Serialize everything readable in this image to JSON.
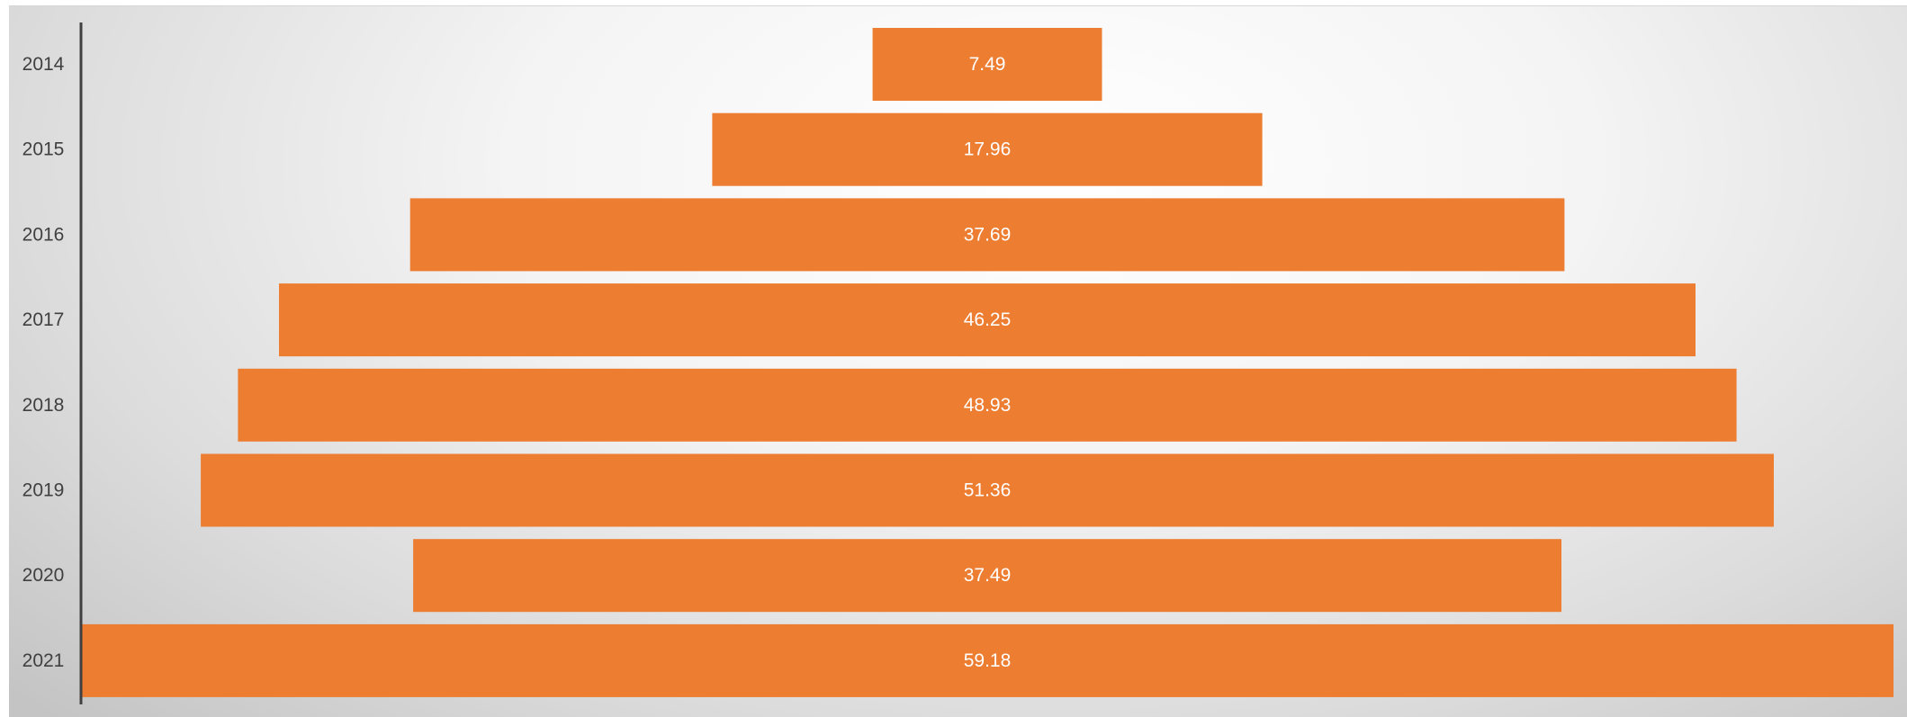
{
  "chart_data": {
    "type": "bar",
    "orientation": "horizontal",
    "layout": "funnel",
    "categories": [
      "2014",
      "2015",
      "2016",
      "2017",
      "2018",
      "2019",
      "2020",
      "2021"
    ],
    "values": [
      7.49,
      17.96,
      37.69,
      46.25,
      48.93,
      51.36,
      37.49,
      59.18
    ],
    "title": "",
    "xlabel": "",
    "ylabel": "",
    "grid": false,
    "legend": "none",
    "colors": {
      "bar": "#ED7D31",
      "data_label": "#FFFFFF",
      "category_label": "#404040",
      "axis": "#404040"
    }
  }
}
